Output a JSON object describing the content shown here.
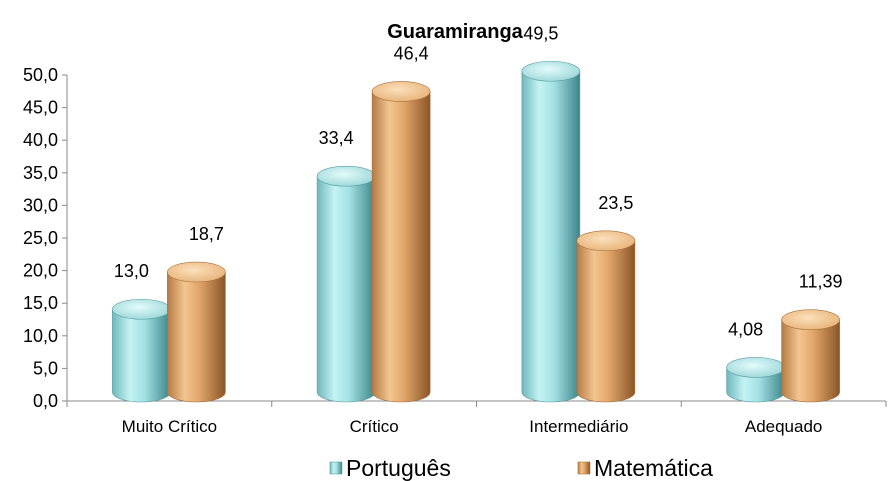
{
  "chart_data": {
    "type": "bar",
    "title": "Guaramiranga",
    "categories": [
      "Muito Crítico",
      "Crítico",
      "Intermediário",
      "Adequado"
    ],
    "series": [
      {
        "name": "Português",
        "values": [
          13.0,
          33.4,
          49.5,
          4.08
        ],
        "labels": [
          "13,0",
          "33,4",
          "49,5",
          "4,08"
        ],
        "color": "#9fdfe2"
      },
      {
        "name": "Matemática",
        "values": [
          18.7,
          46.4,
          23.5,
          11.39
        ],
        "labels": [
          "18,7",
          "46,4",
          "23,5",
          "11,39"
        ],
        "color": "#e0a66c"
      }
    ],
    "yticks": [
      "0,0",
      "5,0",
      "10,0",
      "15,0",
      "20,0",
      "25,0",
      "30,0",
      "35,0",
      "40,0",
      "45,0",
      "50,0"
    ],
    "ylim": [
      0,
      50
    ],
    "xlabel": "",
    "ylabel": "",
    "grid": false,
    "legend_position": "bottom",
    "style": "3d-cylinder"
  }
}
